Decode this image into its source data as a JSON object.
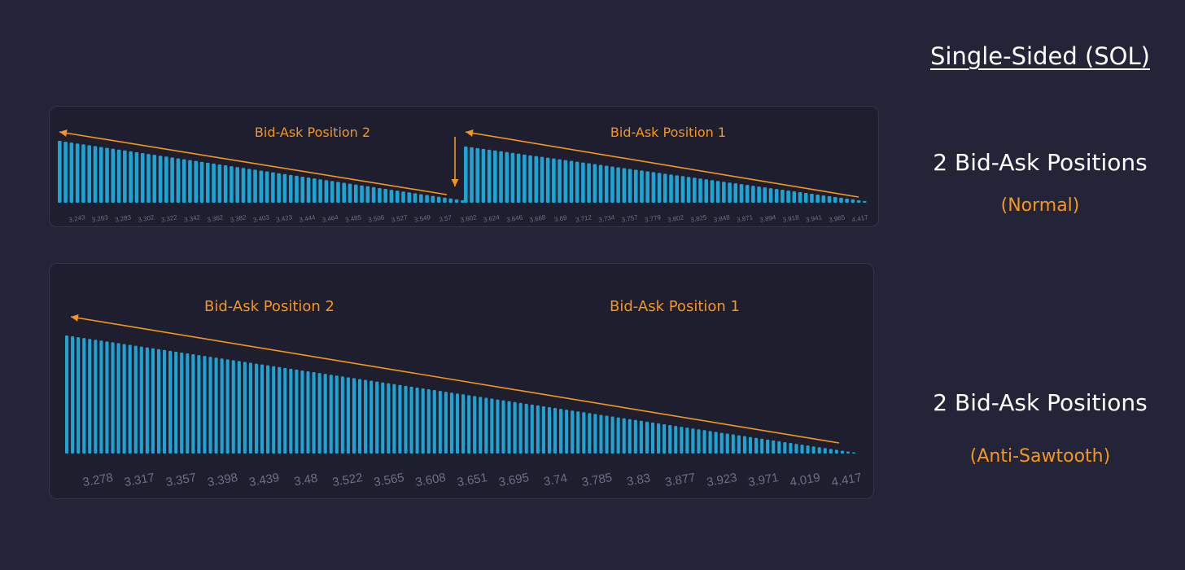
{
  "sidebar": {
    "heading": "Single-Sided (SOL)",
    "normal": {
      "title": "2 Bid-Ask Positions",
      "subtitle": "(Normal)"
    },
    "anti": {
      "title": "2 Bid-Ask Positions",
      "subtitle": "(Anti-Sawtooth)"
    }
  },
  "colors": {
    "bar": "#1ba4d4",
    "accent": "#f5961f",
    "panel": "#1e1e2f",
    "background": "#242438"
  },
  "chart_data": [
    {
      "type": "bar",
      "title": "",
      "annotations": [
        "Bid-Ask Position 2",
        "Bid-Ask Position 1"
      ],
      "tick_labels": [
        "3.243",
        "3.263",
        "3.283",
        "3.302",
        "3.322",
        "3.342",
        "3.362",
        "3.382",
        "3.403",
        "3.423",
        "3.444",
        "3.464",
        "3.485",
        "3.506",
        "3.527",
        "3.549",
        "3.57",
        "3.602",
        "3.624",
        "3.646",
        "3.668",
        "3.69",
        "3.712",
        "3.734",
        "3.757",
        "3.779",
        "3.802",
        "3.825",
        "3.848",
        "3.871",
        "3.894",
        "3.918",
        "3.941",
        "3.965",
        "4.417"
      ],
      "series": [
        {
          "bars": 69,
          "start_value": 100,
          "end_value": 4
        },
        {
          "bars": 69,
          "start_value": 96,
          "end_value": 3
        }
      ],
      "ylim": [
        0,
        100
      ],
      "grid": false
    },
    {
      "type": "bar",
      "title": "",
      "annotations": [
        "Bid-Ask Position 2",
        "Bid-Ask Position 1"
      ],
      "tick_labels": [
        "3.278",
        "3.317",
        "3.357",
        "3.398",
        "3.439",
        "3.48",
        "3.522",
        "3.565",
        "3.608",
        "3.651",
        "3.695",
        "3.74",
        "3.785",
        "3.83",
        "3.877",
        "3.923",
        "3.971",
        "4.019",
        "4.417"
      ],
      "series": [
        {
          "bars": 138,
          "start_value": 100,
          "end_value": 1
        }
      ],
      "ylim": [
        0,
        100
      ],
      "grid": false
    }
  ]
}
